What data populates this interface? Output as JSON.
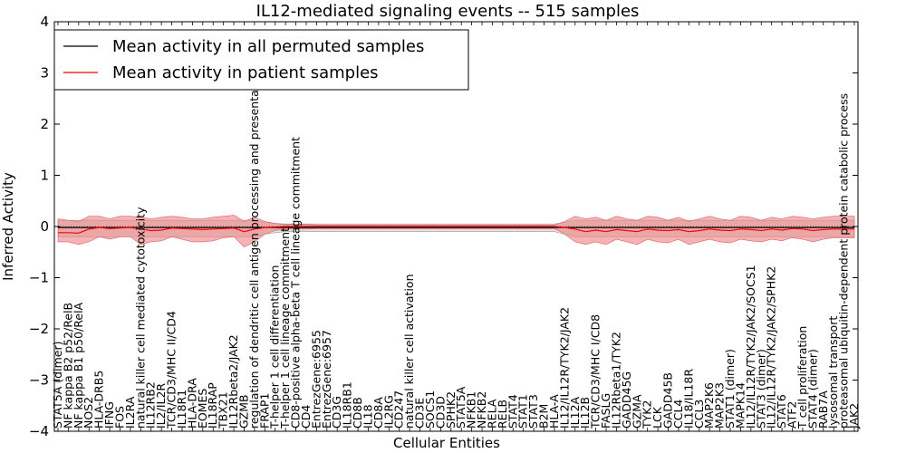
{
  "chart_data": {
    "type": "line",
    "title": "IL12-mediated signaling events -- 515 samples",
    "xlabel": "Cellular Entities",
    "ylabel": "Inferred Activity",
    "ylim": [
      -4,
      4
    ],
    "yticks": [
      -4,
      -3,
      -2,
      -1,
      0,
      1,
      2,
      3,
      4
    ],
    "ytick_labels": [
      "−4",
      "−3",
      "−2",
      "−1",
      "0",
      "1",
      "2",
      "3",
      "4"
    ],
    "grid": false,
    "legend_position": "top-left",
    "legend": [
      {
        "label": "Mean activity in all permuted samples",
        "color": "#000000"
      },
      {
        "label": "Mean activity in patient samples",
        "color": "#ff0000"
      }
    ],
    "categories": [
      "STAT5A (dimer)",
      "NF kappa B2 p52/RelB",
      "NF kappa B1 p50/RelA",
      "NOS2",
      "HLA-DRB5",
      "IFNG",
      "FOS",
      "IL2RA",
      "natural killer cell mediated cytotoxicity",
      "IL12RB2",
      "IL2/IL2R",
      "TCR/CD3/MHC II/CD4",
      "IL18R1",
      "HLA-DRA",
      "EOMES",
      "IL18RAP",
      "TBX21",
      "IL12Rbeta2/JAK2",
      "GZMB",
      "regulation of dendritic cell antigen processing and presentation",
      "FRAP1",
      "T-helper 1 cell differentiation",
      "T-helper 1 cell lineage commitment",
      "CD8-positive alpha-beta T cell lineage commitment",
      "CD4",
      "EntrezGene:6955",
      "EntrezGene:6957",
      "CD3G",
      "IL18RB1",
      "CD8B",
      "IL18",
      "CD8A",
      "IL2RG",
      "CD247",
      "natural killer cell activation",
      "CD3E",
      "SOCS1",
      "CD3D",
      "SPHK2",
      "STAT5A",
      "NFKB1",
      "NFKB2",
      "RELA",
      "RELB",
      "STAT4",
      "STAT1",
      "STAT3",
      "B2M",
      "HLA-A",
      "IL12/IL12R/TYK2/JAK2",
      "IL12A",
      "IL12B",
      "TCR/CD3/MHC I/CD8",
      "FASLG",
      "IL12Rbeta1/TYK2",
      "GADD45G",
      "GZMA",
      "TYK2",
      "LCK",
      "GADD45B",
      "CCL4",
      "IL18/IL18R",
      "CCL3",
      "MAP2K6",
      "MAP2K3",
      "STAT1 (dimer)",
      "MAPK14",
      "IL12/IL12R/TYK2/JAK2/SOCS1",
      "STAT3 (dimer)",
      "IL12/IL12R/TYK2/JAK2/SPHK2",
      "STAT6",
      "ATF2",
      "T cell proliferation",
      "STAT4 (dimer)",
      "RAB7A",
      "lysosomal transport",
      "proteasomal ubiquitin-dependent protein catabolic process",
      "JAK2"
    ],
    "series": [
      {
        "name": "Mean activity in all permuted samples",
        "color": "#000000",
        "values": [
          -0.02,
          -0.02,
          -0.02,
          -0.02,
          -0.02,
          -0.02,
          -0.02,
          -0.02,
          -0.02,
          -0.02,
          -0.02,
          -0.02,
          -0.02,
          -0.02,
          -0.02,
          -0.02,
          -0.02,
          -0.02,
          -0.02,
          -0.02,
          -0.02,
          -0.02,
          -0.02,
          -0.02,
          -0.02,
          -0.02,
          -0.02,
          -0.02,
          -0.02,
          -0.02,
          -0.02,
          -0.02,
          -0.02,
          -0.02,
          -0.02,
          -0.02,
          -0.02,
          -0.02,
          -0.02,
          -0.02,
          -0.02,
          -0.02,
          -0.02,
          -0.02,
          -0.02,
          -0.02,
          -0.02,
          -0.02,
          -0.02,
          -0.02,
          -0.02,
          -0.02,
          -0.02,
          -0.02,
          -0.02,
          -0.02,
          -0.02,
          -0.02,
          -0.02,
          -0.02,
          -0.02,
          -0.02,
          -0.02,
          -0.02,
          -0.02,
          -0.02,
          -0.02,
          -0.02,
          -0.02,
          -0.02,
          -0.02,
          -0.02,
          -0.02,
          -0.02,
          -0.02,
          -0.02,
          -0.02,
          -0.02
        ],
        "band_low": [
          -0.2,
          -0.2,
          -0.2,
          -0.2,
          -0.2,
          -0.2,
          -0.2,
          -0.2,
          -0.2,
          -0.2,
          -0.2,
          -0.2,
          -0.2,
          -0.2,
          -0.2,
          -0.2,
          -0.2,
          -0.2,
          -0.2,
          -0.2,
          -0.15,
          -0.12,
          -0.1,
          -0.1,
          -0.1,
          -0.1,
          -0.1,
          -0.1,
          -0.1,
          -0.1,
          -0.1,
          -0.1,
          -0.1,
          -0.1,
          -0.1,
          -0.1,
          -0.1,
          -0.1,
          -0.1,
          -0.1,
          -0.1,
          -0.1,
          -0.1,
          -0.1,
          -0.1,
          -0.1,
          -0.1,
          -0.1,
          -0.1,
          -0.15,
          -0.2,
          -0.2,
          -0.2,
          -0.2,
          -0.2,
          -0.2,
          -0.2,
          -0.2,
          -0.2,
          -0.2,
          -0.2,
          -0.2,
          -0.2,
          -0.2,
          -0.2,
          -0.2,
          -0.2,
          -0.2,
          -0.2,
          -0.2,
          -0.2,
          -0.2,
          -0.2,
          -0.2,
          -0.2,
          -0.2,
          -0.2,
          -0.2
        ],
        "band_high": [
          0.12,
          0.12,
          0.12,
          0.12,
          0.12,
          0.12,
          0.12,
          0.12,
          0.12,
          0.12,
          0.12,
          0.12,
          0.12,
          0.12,
          0.12,
          0.12,
          0.12,
          0.12,
          0.12,
          0.12,
          0.08,
          0.06,
          0.05,
          0.05,
          0.05,
          0.05,
          0.05,
          0.05,
          0.05,
          0.05,
          0.05,
          0.05,
          0.05,
          0.05,
          0.05,
          0.05,
          0.05,
          0.05,
          0.05,
          0.05,
          0.05,
          0.05,
          0.05,
          0.05,
          0.05,
          0.05,
          0.05,
          0.05,
          0.05,
          0.08,
          0.12,
          0.12,
          0.12,
          0.12,
          0.12,
          0.12,
          0.12,
          0.12,
          0.12,
          0.12,
          0.12,
          0.12,
          0.12,
          0.12,
          0.12,
          0.12,
          0.12,
          0.12,
          0.12,
          0.12,
          0.12,
          0.12,
          0.12,
          0.12,
          0.12,
          0.12,
          0.12,
          0.12
        ]
      },
      {
        "name": "Mean activity in patient samples",
        "color": "#ff0000",
        "values": [
          -0.12,
          -0.12,
          -0.13,
          -0.05,
          -0.02,
          -0.04,
          -0.03,
          -0.02,
          -0.05,
          -0.08,
          -0.07,
          -0.03,
          -0.04,
          -0.05,
          -0.06,
          -0.05,
          -0.04,
          -0.03,
          -0.1,
          -0.05,
          -0.02,
          -0.01,
          0.0,
          0.0,
          0.0,
          0.0,
          0.0,
          0.0,
          0.0,
          0.0,
          0.0,
          0.0,
          0.0,
          0.0,
          0.0,
          0.0,
          0.0,
          0.0,
          0.0,
          0.0,
          0.0,
          0.0,
          0.0,
          0.0,
          0.0,
          0.0,
          0.0,
          0.0,
          0.0,
          -0.02,
          -0.05,
          -0.1,
          -0.07,
          -0.1,
          -0.06,
          -0.08,
          -0.1,
          -0.05,
          -0.07,
          -0.08,
          -0.06,
          -0.1,
          -0.08,
          -0.05,
          -0.07,
          -0.08,
          -0.05,
          -0.06,
          -0.08,
          -0.05,
          -0.07,
          -0.04,
          -0.05,
          -0.08,
          -0.06,
          -0.05,
          -0.05,
          -0.05
        ],
        "band_low": [
          -0.3,
          -0.3,
          -0.35,
          -0.3,
          -0.2,
          -0.25,
          -0.2,
          -0.2,
          -0.35,
          -0.3,
          -0.28,
          -0.2,
          -0.25,
          -0.3,
          -0.3,
          -0.28,
          -0.22,
          -0.2,
          -0.4,
          -0.3,
          -0.15,
          -0.08,
          -0.05,
          -0.05,
          -0.05,
          -0.04,
          -0.04,
          -0.04,
          -0.04,
          -0.04,
          -0.04,
          -0.04,
          -0.04,
          -0.04,
          -0.04,
          -0.04,
          -0.04,
          -0.04,
          -0.04,
          -0.04,
          -0.04,
          -0.04,
          -0.04,
          -0.04,
          -0.04,
          -0.04,
          -0.04,
          -0.04,
          -0.04,
          -0.15,
          -0.3,
          -0.35,
          -0.3,
          -0.35,
          -0.25,
          -0.3,
          -0.35,
          -0.25,
          -0.3,
          -0.32,
          -0.25,
          -0.35,
          -0.3,
          -0.25,
          -0.3,
          -0.32,
          -0.25,
          -0.28,
          -0.3,
          -0.25,
          -0.28,
          -0.22,
          -0.25,
          -0.3,
          -0.25,
          -0.22,
          -0.22,
          -0.22
        ],
        "band_high": [
          0.15,
          0.12,
          0.1,
          0.2,
          0.2,
          0.15,
          0.2,
          0.2,
          0.18,
          0.15,
          0.18,
          0.2,
          0.18,
          0.15,
          0.15,
          0.18,
          0.2,
          0.22,
          0.1,
          0.18,
          0.1,
          0.06,
          0.04,
          0.04,
          0.04,
          0.03,
          0.03,
          0.03,
          0.03,
          0.03,
          0.03,
          0.03,
          0.03,
          0.03,
          0.03,
          0.03,
          0.03,
          0.03,
          0.03,
          0.03,
          0.03,
          0.03,
          0.03,
          0.03,
          0.03,
          0.03,
          0.03,
          0.03,
          0.03,
          0.1,
          0.2,
          0.15,
          0.18,
          0.12,
          0.2,
          0.15,
          0.12,
          0.2,
          0.18,
          0.12,
          0.18,
          0.1,
          0.15,
          0.2,
          0.15,
          0.12,
          0.2,
          0.18,
          0.12,
          0.18,
          0.15,
          0.2,
          0.18,
          0.15,
          0.18,
          0.2,
          0.2,
          0.2
        ]
      }
    ]
  }
}
